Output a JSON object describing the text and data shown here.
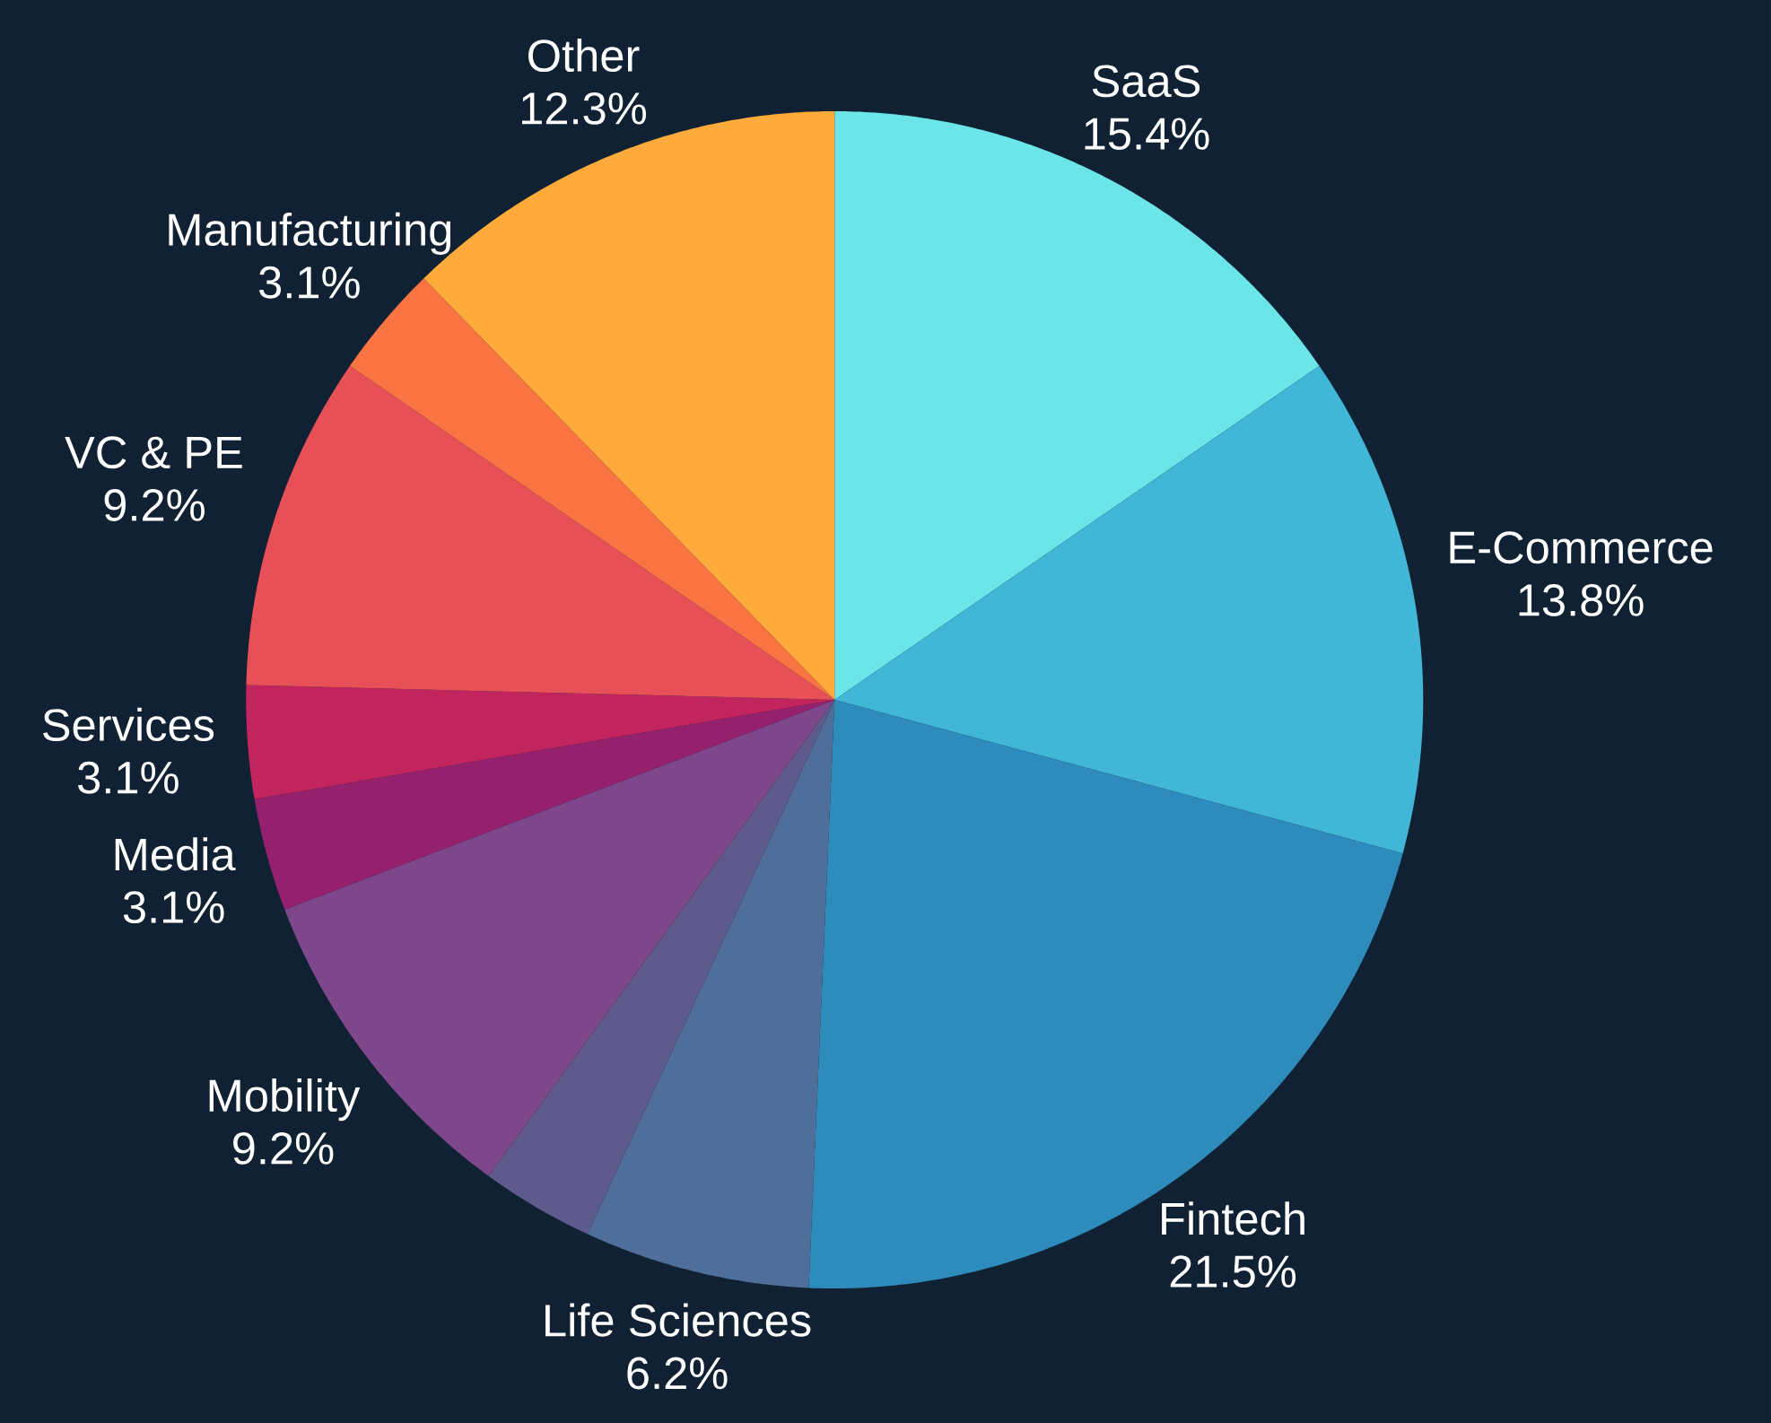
{
  "chart_data": {
    "type": "pie",
    "categories": [
      "SaaS",
      "E-Commerce",
      "Fintech",
      "Life Sciences",
      null,
      "Mobility",
      "Media",
      "Services",
      "VC & PE",
      "Manufacturing",
      "Other"
    ],
    "values": [
      15.4,
      13.8,
      21.5,
      6.2,
      3.1,
      9.2,
      3.1,
      3.1,
      9.2,
      3.1,
      12.3
    ],
    "value_labels": [
      "15.4%",
      "13.8%",
      "21.5%",
      "6.2%",
      null,
      "9.2%",
      "3.1%",
      "3.1%",
      "9.2%",
      "3.1%",
      "12.3%"
    ],
    "colors": [
      "#6be5e8",
      "#42b6d6",
      "#2e8cbc",
      "#4f6f9a",
      "#5f5a8e",
      "#7e478c",
      "#94206e",
      "#c2255e",
      "#e85058",
      "#fa7343",
      "#ffab3b"
    ]
  }
}
